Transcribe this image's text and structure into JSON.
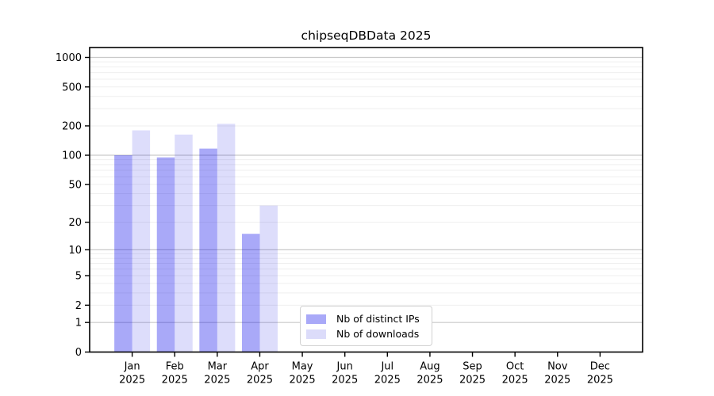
{
  "figure": {
    "title": "chipseqDBData 2025",
    "background": "#ffffff"
  },
  "legend": {
    "items": [
      {
        "label": "Nb of distinct IPs",
        "color": "#a9a9f8"
      },
      {
        "label": "Nb of downloads",
        "color": "#dcdcfa"
      }
    ]
  },
  "chart_data": {
    "type": "bar",
    "title": "chipseqDBData 2025",
    "categories": [
      "Jan 2025",
      "Feb 2025",
      "Mar 2025",
      "Apr 2025",
      "May 2025",
      "Jun 2025",
      "Jul 2025",
      "Aug 2025",
      "Sep 2025",
      "Oct 2025",
      "Nov 2025",
      "Dec 2025"
    ],
    "series": [
      {
        "name": "Nb of distinct IPs",
        "color": "#a9a9f8",
        "fill": "rgba(10,10,235,0.35)",
        "values": [
          100,
          95,
          117,
          15,
          0,
          0,
          0,
          0,
          0,
          0,
          0,
          0
        ]
      },
      {
        "name": "Nb of downloads",
        "color": "#dcdcfa",
        "fill": "rgba(30,30,230,0.15)",
        "values": [
          180,
          163,
          210,
          30,
          0,
          0,
          0,
          0,
          0,
          0,
          0,
          0
        ]
      }
    ],
    "xlabel": "",
    "ylabel": "",
    "yscale": "log10(1+x)",
    "ylim": [
      0,
      1260
    ],
    "yticks": [
      0,
      1,
      2,
      5,
      10,
      20,
      50,
      100,
      200,
      500,
      1000
    ],
    "ytick_labels": [
      "0",
      "1",
      "2",
      "5",
      "10",
      "20",
      "50",
      "100",
      "200",
      "500",
      "1000"
    ],
    "grid": {
      "major_values": [
        1,
        10,
        100,
        1000
      ],
      "minor_values": [
        2,
        3,
        4,
        5,
        6,
        7,
        8,
        9,
        20,
        30,
        40,
        50,
        60,
        70,
        80,
        90,
        200,
        300,
        400,
        500,
        600,
        700,
        800,
        900
      ],
      "major_color": "#c9c9c9",
      "minor_color": "#efefef"
    },
    "axis_color": "#000000",
    "legend_position": "lower center"
  }
}
